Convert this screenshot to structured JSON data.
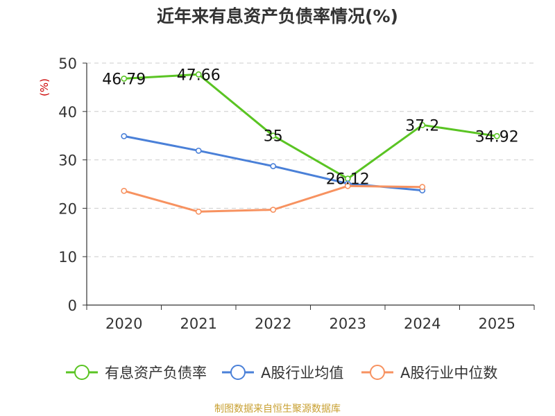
{
  "chart_data": {
    "type": "line",
    "title": "近年来有息资产负债率情况(%)",
    "ylabel": "(%)",
    "xlabel": "",
    "categories": [
      "2020",
      "2021",
      "2022",
      "2023",
      "2024",
      "2025"
    ],
    "ylim": [
      0,
      50
    ],
    "yticks": [
      0,
      10,
      20,
      30,
      40,
      50
    ],
    "grid": true,
    "legend_position": "bottom",
    "series": [
      {
        "name": "有息资产负债率",
        "color": "#5ac423",
        "values": [
          46.79,
          47.66,
          35,
          26.12,
          37.2,
          34.92
        ],
        "labels": [
          "46.79",
          "47.66",
          "35",
          "26.12",
          "37.2",
          "34.92"
        ],
        "show_labels": true
      },
      {
        "name": "A股行业均值",
        "color": "#4a80d8",
        "values": [
          34.9,
          31.9,
          28.7,
          25.1,
          23.7,
          null
        ],
        "show_labels": false
      },
      {
        "name": "A股行业中位数",
        "color": "#f79260",
        "values": [
          23.6,
          19.3,
          19.7,
          24.6,
          24.4,
          null
        ],
        "show_labels": false
      }
    ],
    "source": "制图数据来自恒生聚源数据库"
  }
}
